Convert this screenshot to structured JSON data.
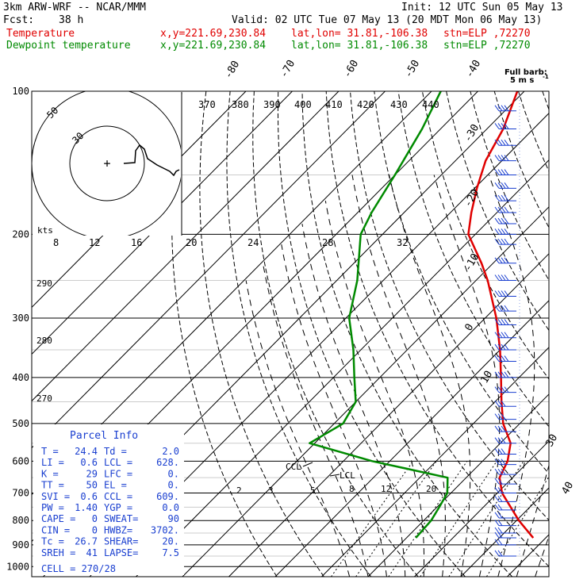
{
  "header": {
    "model": "3km ARW-WRF -- NCAR/MMM",
    "init": "Init: 12 UTC Sun 05 May 13",
    "fcst_label": "Fcst:",
    "fcst_value": "38 h",
    "valid": "Valid: 02 UTC Tue 07 May 13 (20 MDT Mon 06 May 13)",
    "temperature_label": "Temperature",
    "dewpoint_label": "Dewpoint temperature",
    "xy": "x,y=221.69,230.84",
    "latlon": "lat,lon= 31.81,-106.38",
    "stn": "stn=ELP ,72270",
    "barb_legend_1": "Full barb:",
    "barb_legend_2": "5 m s",
    "barb_legend_sup": "-1"
  },
  "colors": {
    "temperature": "#e00000",
    "dewpoint": "#008a00",
    "parcel_text": "#1a3fd0",
    "wind_barbs": "#1a3fd0",
    "grid": "#000000"
  },
  "parcel_info": {
    "title": "Parcel Info",
    "rows": [
      [
        "T   =",
        "24.4",
        "Td =",
        "2.0"
      ],
      [
        "LI  =",
        "0.6",
        "LCL =",
        "628."
      ],
      [
        "K   =",
        "29",
        "LFC =",
        "0."
      ],
      [
        "TT  =",
        "50",
        "EL  =",
        "0."
      ],
      [
        "SVI =",
        "0.6",
        "CCL =",
        "609."
      ],
      [
        "PW  =",
        "1.40",
        "YGP =",
        "0.0"
      ],
      [
        "CAPE =",
        "0",
        "SWEAT=",
        "90"
      ],
      [
        "CIN  =",
        "0",
        "HWBZ=",
        "3702."
      ],
      [
        "Tc  =",
        "26.7",
        "SHEAR=",
        "20."
      ],
      [
        "SREH =",
        "41",
        "LAPSE=",
        "7.5"
      ]
    ],
    "cell": "CELL = 270/28"
  },
  "labels": {
    "ccl": "CCL",
    "lcl": "LCL",
    "hodo_units": "kts"
  },
  "chart_data": {
    "type": "line",
    "title": "",
    "xlabel": "",
    "ylabel": "",
    "y_axis": "pressure (hPa), logarithmic",
    "pressure_ticks": [
      100,
      200,
      300,
      400,
      500,
      600,
      700,
      800,
      900,
      1000
    ],
    "isotherm_labels": [
      "-80",
      "-70",
      "-60",
      "-50",
      "-40",
      "-30",
      "-20",
      "-10",
      "0",
      "10",
      "20",
      "30",
      "40"
    ],
    "theta_labels": [
      "370",
      "380",
      "390",
      "400",
      "410",
      "420",
      "430",
      "440"
    ],
    "theta_left_labels": [
      "290",
      "280",
      "270"
    ],
    "theta_e_labels": [
      "8",
      "12",
      "16",
      "20",
      "24",
      "28",
      "32"
    ],
    "mixing_ratio_labels": [
      "2",
      "3",
      "5",
      "8",
      "12",
      "20"
    ],
    "hodograph_ring_labels": [
      "50",
      "30"
    ],
    "series": [
      {
        "name": "Temperature",
        "points": [
          [
            870,
            27.3
          ],
          [
            800,
            20.5
          ],
          [
            700,
            11.0
          ],
          [
            650,
            7.2
          ],
          [
            600,
            5.4
          ],
          [
            550,
            2.2
          ],
          [
            500,
            -3.6
          ],
          [
            450,
            -8.6
          ],
          [
            400,
            -13.9
          ],
          [
            350,
            -20.0
          ],
          [
            300,
            -27.6
          ],
          [
            250,
            -37.5
          ],
          [
            230,
            -42.5
          ],
          [
            200,
            -51.5
          ],
          [
            180,
            -55.5
          ],
          [
            160,
            -59.5
          ],
          [
            140,
            -63.5
          ],
          [
            120,
            -66.5
          ],
          [
            100,
            -71.5
          ]
        ]
      },
      {
        "name": "Dewpoint temperature",
        "points": [
          [
            870,
            2.0
          ],
          [
            800,
            1.6
          ],
          [
            750,
            0.5
          ],
          [
            700,
            -0.8
          ],
          [
            650,
            -4.0
          ],
          [
            600,
            -23.8
          ],
          [
            550,
            -41.1
          ],
          [
            500,
            -38.1
          ],
          [
            450,
            -40.0
          ],
          [
            400,
            -45.5
          ],
          [
            350,
            -51.6
          ],
          [
            300,
            -59.3
          ],
          [
            250,
            -65.6
          ],
          [
            200,
            -74.7
          ],
          [
            180,
            -77.0
          ],
          [
            150,
            -80.0
          ],
          [
            120,
            -84.0
          ],
          [
            100,
            -88.0
          ]
        ]
      }
    ],
    "wind_barbs": {
      "unit": "Full barb: 5 m s-1",
      "levels_hpa": [
        950,
        900,
        870,
        850,
        820,
        790,
        760,
        730,
        700,
        670,
        640,
        610,
        580,
        550,
        520,
        490,
        460,
        430,
        400,
        370,
        350,
        330,
        310,
        290,
        270,
        250,
        230,
        210,
        200,
        190,
        180,
        170,
        160,
        150,
        140,
        130,
        120,
        110,
        100
      ]
    },
    "hodograph": {
      "ring_units": "kts",
      "rings": [
        30,
        50
      ]
    }
  }
}
